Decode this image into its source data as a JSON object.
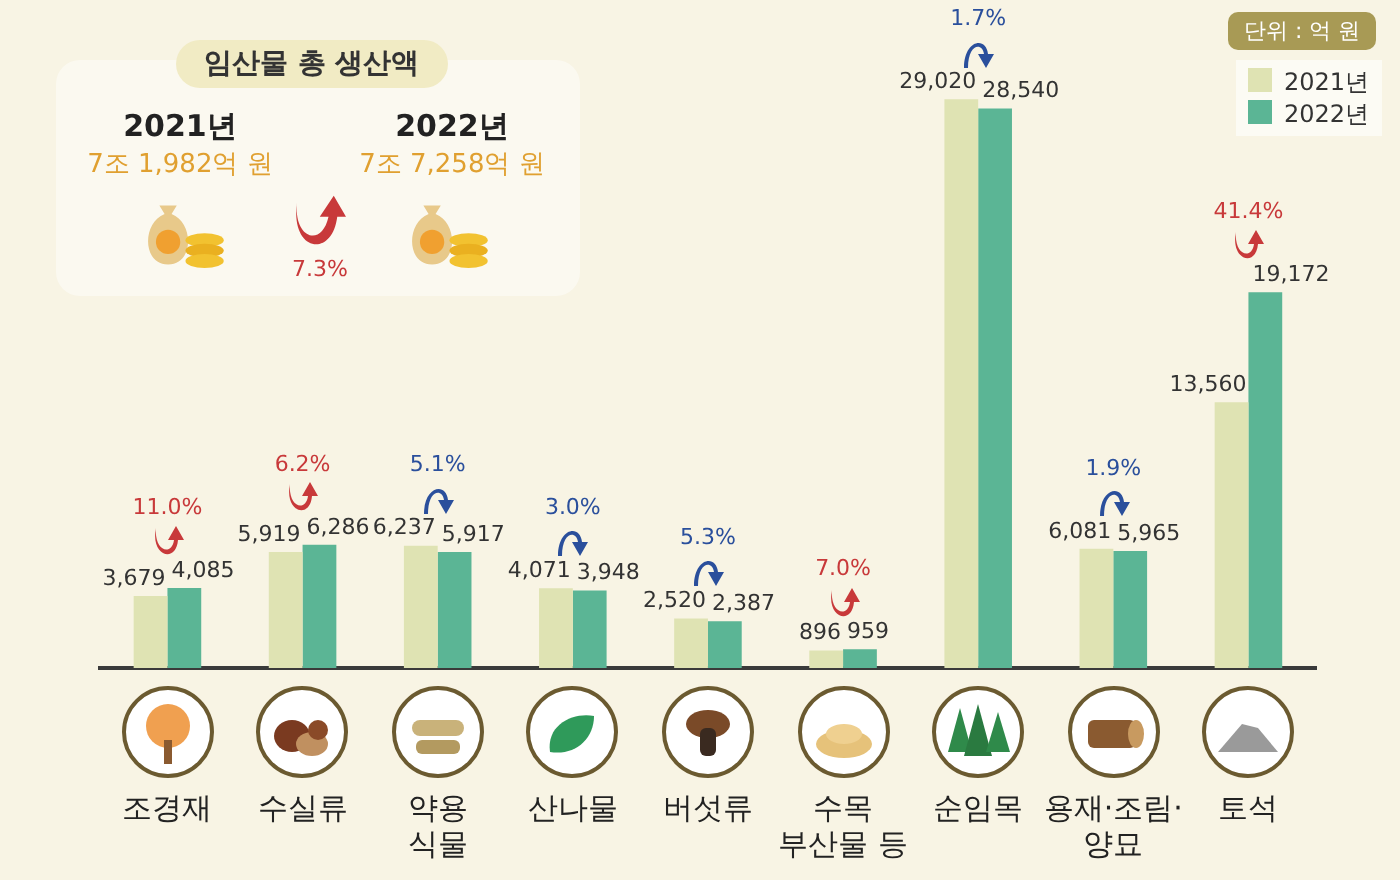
{
  "chart_data": {
    "type": "bar",
    "categories": [
      "조경재",
      "수실류",
      "약용\n식물",
      "산나물",
      "버섯류",
      "수목\n부산물 등",
      "순임목",
      "용재·조림·\n양묘",
      "토석"
    ],
    "series": [
      {
        "name": "2021년",
        "color": "#dfe3b3",
        "values": [
          3679,
          5919,
          6237,
          4071,
          2520,
          896,
          29020,
          6081,
          13560
        ],
        "value_labels": [
          "3,679",
          "5,919",
          "6,237",
          "4,071",
          "2,520",
          "896",
          "29,020",
          "6,081",
          "13,560"
        ]
      },
      {
        "name": "2022년",
        "color": "#5bb595",
        "values": [
          4085,
          6286,
          5917,
          3948,
          2387,
          959,
          28540,
          5965,
          19172
        ],
        "value_labels": [
          "4,085",
          "6,286",
          "5,917",
          "3,948",
          "2,387",
          "959",
          "28,540",
          "5,965",
          "19,172"
        ]
      }
    ],
    "legend": "top right",
    "tick_labels": "x",
    "annotations": [
      "임산물 총 생산액",
      "2021년",
      "7조 1,982억 원",
      "2022년",
      "7조 7,258억 원",
      "7.3%",
      "단위 : 억 원",
      "11.0%",
      "6.2%",
      "5.1%",
      "3.0%",
      "5.3%",
      "7.0%",
      "1.7%",
      "1.9%",
      "41.4%"
    ]
  }
}
